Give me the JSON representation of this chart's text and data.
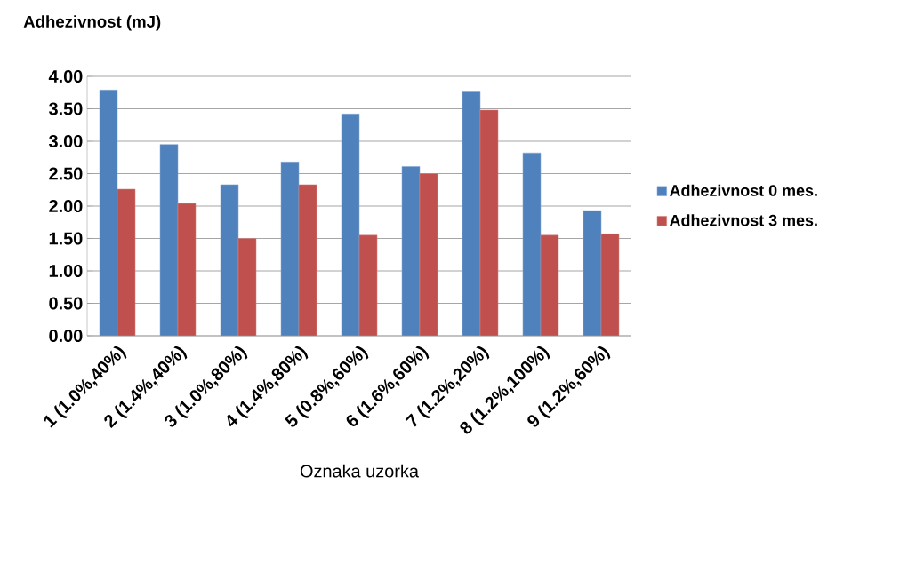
{
  "chart_data": {
    "type": "bar",
    "ylabel": "Adhezivnost (mJ)",
    "xlabel": "Oznaka uzorka",
    "categories": [
      "1 (1.0%,40%)",
      "2 (1.4%,40%)",
      "3 (1.0%,80%)",
      "4 (1.4%,80%)",
      "5 (0.8%,60%)",
      "6 (1.6%,60%)",
      "7 (1.2%,20%)",
      "8 (1.2%,100%)",
      "9 (1.2%,60%)"
    ],
    "series": [
      {
        "name": "Adhezivnost 0 mes.",
        "color": "#4f81bd",
        "values": [
          3.79,
          2.95,
          2.33,
          2.68,
          3.42,
          2.61,
          3.76,
          2.82,
          1.93
        ]
      },
      {
        "name": "Adhezivnost 3 mes.",
        "color": "#c0504d",
        "values": [
          2.26,
          2.04,
          1.5,
          2.33,
          1.55,
          2.5,
          3.48,
          1.55,
          1.57
        ]
      }
    ],
    "ylim": [
      0,
      4
    ],
    "yticks": [
      {
        "value": 0,
        "label": "0.00"
      },
      {
        "value": 0.5,
        "label": "0.50"
      },
      {
        "value": 1,
        "label": "1.00"
      },
      {
        "value": 1.5,
        "label": "1.50"
      },
      {
        "value": 2,
        "label": "2.00"
      },
      {
        "value": 2.5,
        "label": "2.50"
      },
      {
        "value": 3,
        "label": "3.00"
      },
      {
        "value": 3.5,
        "label": "3.50"
      },
      {
        "value": 4,
        "label": "4.00"
      }
    ],
    "grid": "y",
    "legend": "right"
  }
}
